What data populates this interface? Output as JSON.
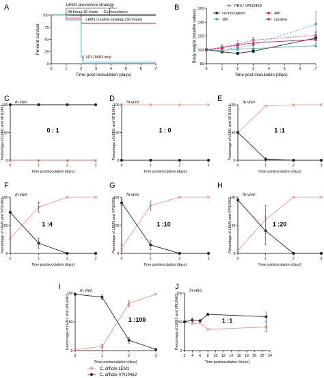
{
  "colors": {
    "lem1": "#f08080",
    "vpi": "#222222",
    "grid": "#000000",
    "curative": "#d93a3a",
    "vpi_only": "#5aa9dc",
    "preventive": "#333333",
    "gray": "#888888"
  },
  "legend": {
    "lem1": "C. difficile LEM1",
    "vpi": "C. difficile VPI10463"
  },
  "chart_data": [
    {
      "panel": "A",
      "type": "line",
      "xlabel": "Time post-inoculation (days)",
      "ylabel": "Percent survival",
      "xlim": [
        0,
        7
      ],
      "ylim": [
        0,
        100
      ],
      "xticks": [
        "0",
        "1",
        "2",
        "3",
        "4",
        "5",
        "6",
        "7"
      ],
      "yticks": [
        "0",
        "25",
        "50",
        "75",
        "100"
      ],
      "annotations": [
        "LEM1 preventive strategy",
        "48 hours",
        "36 hours",
        "Co-inoculation",
        "LEM1 curative strategy (30 hours)",
        "VPI 10463 only"
      ],
      "series": [
        {
          "name": "LEM1 preventive strategy",
          "x": [
            0,
            7
          ],
          "y": [
            100,
            100
          ]
        },
        {
          "name": "LEM1 curative strategy (30 hours)",
          "x": [
            0,
            1,
            1,
            2,
            2,
            7
          ],
          "y": [
            100,
            100,
            94,
            94,
            83,
            83
          ]
        },
        {
          "name": "VPI 10463 only",
          "x": [
            0,
            1,
            1,
            2,
            2,
            2.1,
            2.1,
            7
          ],
          "y": [
            100,
            100,
            90,
            90,
            14,
            14,
            3,
            3
          ]
        }
      ]
    },
    {
      "panel": "B",
      "type": "line",
      "xlabel": "Time post-inoculation (days)",
      "ylabel": "Body weight (relative values)",
      "xlim": [
        0,
        7
      ],
      "ylim": [
        80,
        160
      ],
      "xticks": [
        "0",
        "1",
        "2",
        "3",
        "4",
        "5",
        "6",
        "7"
      ],
      "yticks": [
        "80",
        "100",
        "120",
        "140",
        "160"
      ],
      "series": [
        {
          "name": "PBS / VPI10463",
          "x": [
            0,
            1,
            2,
            3,
            7
          ],
          "y": [
            100,
            101,
            103,
            107,
            137
          ]
        },
        {
          "name": "co-inoculation",
          "x": [
            0,
            1,
            2,
            3,
            7
          ],
          "y": [
            100,
            97,
            95,
            98,
            117
          ]
        },
        {
          "name": "48h",
          "x": [
            0,
            1,
            2,
            3,
            7
          ],
          "y": [
            100,
            103,
            107,
            110,
            115
          ]
        },
        {
          "name": "36h",
          "x": [
            0,
            1,
            2,
            3,
            7
          ],
          "y": [
            100,
            99,
            101,
            102,
            106
          ]
        },
        {
          "name": "curative",
          "x": [
            0,
            1,
            2,
            3,
            7
          ],
          "y": [
            100,
            104,
            108,
            114,
            121
          ]
        }
      ]
    },
    {
      "panel": "C",
      "type": "line",
      "title": "In vivo",
      "ratio": "0 : 1",
      "xlabel": "Time postinoculation (days)",
      "ylabel": "Percentage of LEM1 and VPI10463",
      "xlim": [
        0,
        3
      ],
      "ylim": [
        0,
        100
      ],
      "xticks": [
        "0",
        "1",
        "2",
        "3"
      ],
      "yticks": [
        "0",
        "50",
        "100"
      ],
      "series": [
        {
          "name": "LEM1",
          "x": [
            0,
            1,
            2,
            3
          ],
          "y": [
            0,
            0,
            0,
            0
          ]
        },
        {
          "name": "VPI10463",
          "x": [
            0,
            1,
            2,
            3
          ],
          "y": [
            100,
            100,
            100,
            100
          ]
        }
      ]
    },
    {
      "panel": "D",
      "type": "line",
      "title": "In vivo",
      "ratio": "1 : 0",
      "xlabel": "Time postinoculation (days)",
      "ylabel": "Percentage of LEM1 and VPI10463",
      "xlim": [
        0,
        3
      ],
      "ylim": [
        0,
        100
      ],
      "xticks": [
        "0",
        "1",
        "2",
        "3"
      ],
      "yticks": [
        "0",
        "50",
        "100"
      ],
      "series": [
        {
          "name": "LEM1",
          "x": [
            0,
            1,
            2,
            3
          ],
          "y": [
            100,
            100,
            100,
            100
          ]
        },
        {
          "name": "VPI10463",
          "x": [
            0,
            1,
            2,
            3
          ],
          "y": [
            0,
            0,
            0,
            0
          ]
        }
      ]
    },
    {
      "panel": "E",
      "type": "line",
      "title": "In vivo",
      "ratio": "1 :1",
      "xlabel": "Time postinoculation (days)",
      "ylabel": "Percentage of LEM1 and VPI10463",
      "xlim": [
        0,
        3
      ],
      "ylim": [
        0,
        100
      ],
      "xticks": [
        "0",
        "1",
        "2",
        "3"
      ],
      "yticks": [
        "0",
        "50",
        "100"
      ],
      "series": [
        {
          "name": "LEM1",
          "x": [
            0,
            1,
            2,
            3
          ],
          "y": [
            50,
            98,
            100,
            100
          ]
        },
        {
          "name": "VPI10463",
          "x": [
            0,
            1,
            2,
            3
          ],
          "y": [
            50,
            2,
            0,
            0
          ]
        }
      ]
    },
    {
      "panel": "F",
      "type": "line",
      "title": "In vivo",
      "ratio": "1 :4",
      "xlabel": "Time postinoculation (days)",
      "ylabel": "Percentage of LEM1 and VPI10463",
      "xlim": [
        0,
        3
      ],
      "ylim": [
        0,
        100
      ],
      "xticks": [
        "0",
        "1",
        "2",
        "3"
      ],
      "yticks": [
        "0",
        "50",
        "100"
      ],
      "series": [
        {
          "name": "LEM1",
          "x": [
            0,
            1,
            2,
            3
          ],
          "y": [
            27,
            82,
            100,
            100
          ]
        },
        {
          "name": "VPI10463",
          "x": [
            0,
            1,
            2,
            3
          ],
          "y": [
            73,
            18,
            0,
            0
          ]
        }
      ]
    },
    {
      "panel": "G",
      "type": "line",
      "title": "In vivo",
      "ratio": "1 :10",
      "xlabel": "Time postinoculation (days)",
      "ylabel": "Percentage of LEM1 and VPI10463",
      "xlim": [
        0,
        3
      ],
      "ylim": [
        0,
        100
      ],
      "xticks": [
        "0",
        "1",
        "2",
        "3"
      ],
      "yticks": [
        "0",
        "50",
        "100"
      ],
      "series": [
        {
          "name": "LEM1",
          "x": [
            0,
            1,
            2,
            3
          ],
          "y": [
            10,
            85,
            100,
            100
          ]
        },
        {
          "name": "VPI10463",
          "x": [
            0,
            1,
            2,
            3
          ],
          "y": [
            90,
            15,
            0,
            0
          ]
        }
      ]
    },
    {
      "panel": "H",
      "type": "line",
      "title": "In vivo",
      "ratio": "1 :20",
      "xlabel": "Time postinoculation (days)",
      "ylabel": "Percentage of LEM1 and VPI10463",
      "xlim": [
        0,
        3
      ],
      "ylim": [
        0,
        100
      ],
      "xticks": [
        "0",
        "1",
        "2",
        "3"
      ],
      "yticks": [
        "0",
        "50",
        "100"
      ],
      "series": [
        {
          "name": "LEM1",
          "x": [
            0,
            1,
            2,
            3
          ],
          "y": [
            5,
            60,
            100,
            100
          ]
        },
        {
          "name": "VPI10463",
          "x": [
            0,
            1,
            2,
            3
          ],
          "y": [
            95,
            40,
            0,
            0
          ]
        }
      ]
    },
    {
      "panel": "I",
      "type": "line",
      "title": "In vivo",
      "ratio": "1 :100",
      "xlabel": "Time postinoculation (days)",
      "ylabel": "Percentage of LEM1 and VPI10463",
      "xlim": [
        0,
        3
      ],
      "ylim": [
        0,
        100
      ],
      "xticks": [
        "0",
        "1",
        "2",
        "3"
      ],
      "yticks": [
        "0",
        "50",
        "100"
      ],
      "series": [
        {
          "name": "LEM1",
          "x": [
            0,
            1,
            2,
            3
          ],
          "y": [
            2,
            7,
            82,
            98
          ]
        },
        {
          "name": "VPI10463",
          "x": [
            0,
            1,
            2,
            3
          ],
          "y": [
            98,
            93,
            18,
            2
          ]
        }
      ]
    },
    {
      "panel": "J",
      "type": "line",
      "title": "In vitro",
      "ratio": "1 :1",
      "xlabel": "Time postinoculation (hours)",
      "ylabel": "Percentage of LEM1 and VPI10463",
      "xlim": [
        2,
        24
      ],
      "ylim": [
        0,
        100
      ],
      "xticks": [
        "2",
        "4",
        "6",
        "8",
        "10",
        "12",
        "14",
        "16",
        "18",
        "20",
        "22",
        "24"
      ],
      "yticks": [
        "0",
        "50",
        "100"
      ],
      "series": [
        {
          "name": "LEM1",
          "x": [
            2,
            4,
            6,
            8,
            23
          ],
          "y": [
            50,
            47,
            48,
            37,
            41
          ]
        },
        {
          "name": "VPI10463",
          "x": [
            2,
            4,
            6,
            8,
            23
          ],
          "y": [
            50,
            53,
            52,
            63,
            59
          ]
        }
      ]
    }
  ]
}
